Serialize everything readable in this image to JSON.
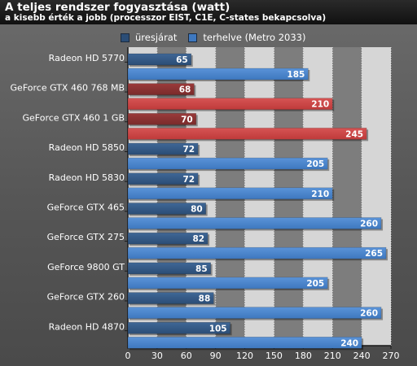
{
  "chart_data": {
    "type": "bar",
    "orientation": "horizontal",
    "title": "A teljes rendszer fogyasztása (watt)",
    "subtitle": "a kisebb érték a jobb (processzor EIST, C1E, C-states bekapcsolva)",
    "xlabel": "",
    "ylabel": "",
    "xlim": [
      0,
      270
    ],
    "ticks": [
      0,
      30,
      60,
      90,
      120,
      150,
      180,
      210,
      240,
      270
    ],
    "grid": true,
    "legend_position": "top",
    "categories": [
      "Radeon HD 5770",
      "GeForce GTX 460 768 MB",
      "GeForce GTX 460 1 GB",
      "Radeon HD 5850",
      "Radeon HD 5830",
      "GeForce GTX 465",
      "GeForce GTX 275",
      "GeForce 9800 GT",
      "GeForce GTX 260",
      "Radeon HD 4870"
    ],
    "series": [
      {
        "name": "üresjárat",
        "values": [
          65,
          68,
          70,
          72,
          72,
          80,
          82,
          85,
          88,
          105
        ]
      },
      {
        "name": "terhelve (Metro 2033)",
        "values": [
          185,
          210,
          245,
          205,
          210,
          260,
          265,
          205,
          260,
          240
        ]
      }
    ],
    "highlighted_categories": [
      1,
      2
    ],
    "colors": {
      "idle": "#2b4d76",
      "load": "#3e78bf",
      "idle_highlight": "#7a2b2b",
      "load_highlight": "#bf3a3a",
      "plot_background": "#d6d6d6",
      "plot_stripe": "#7d7d7d"
    }
  }
}
